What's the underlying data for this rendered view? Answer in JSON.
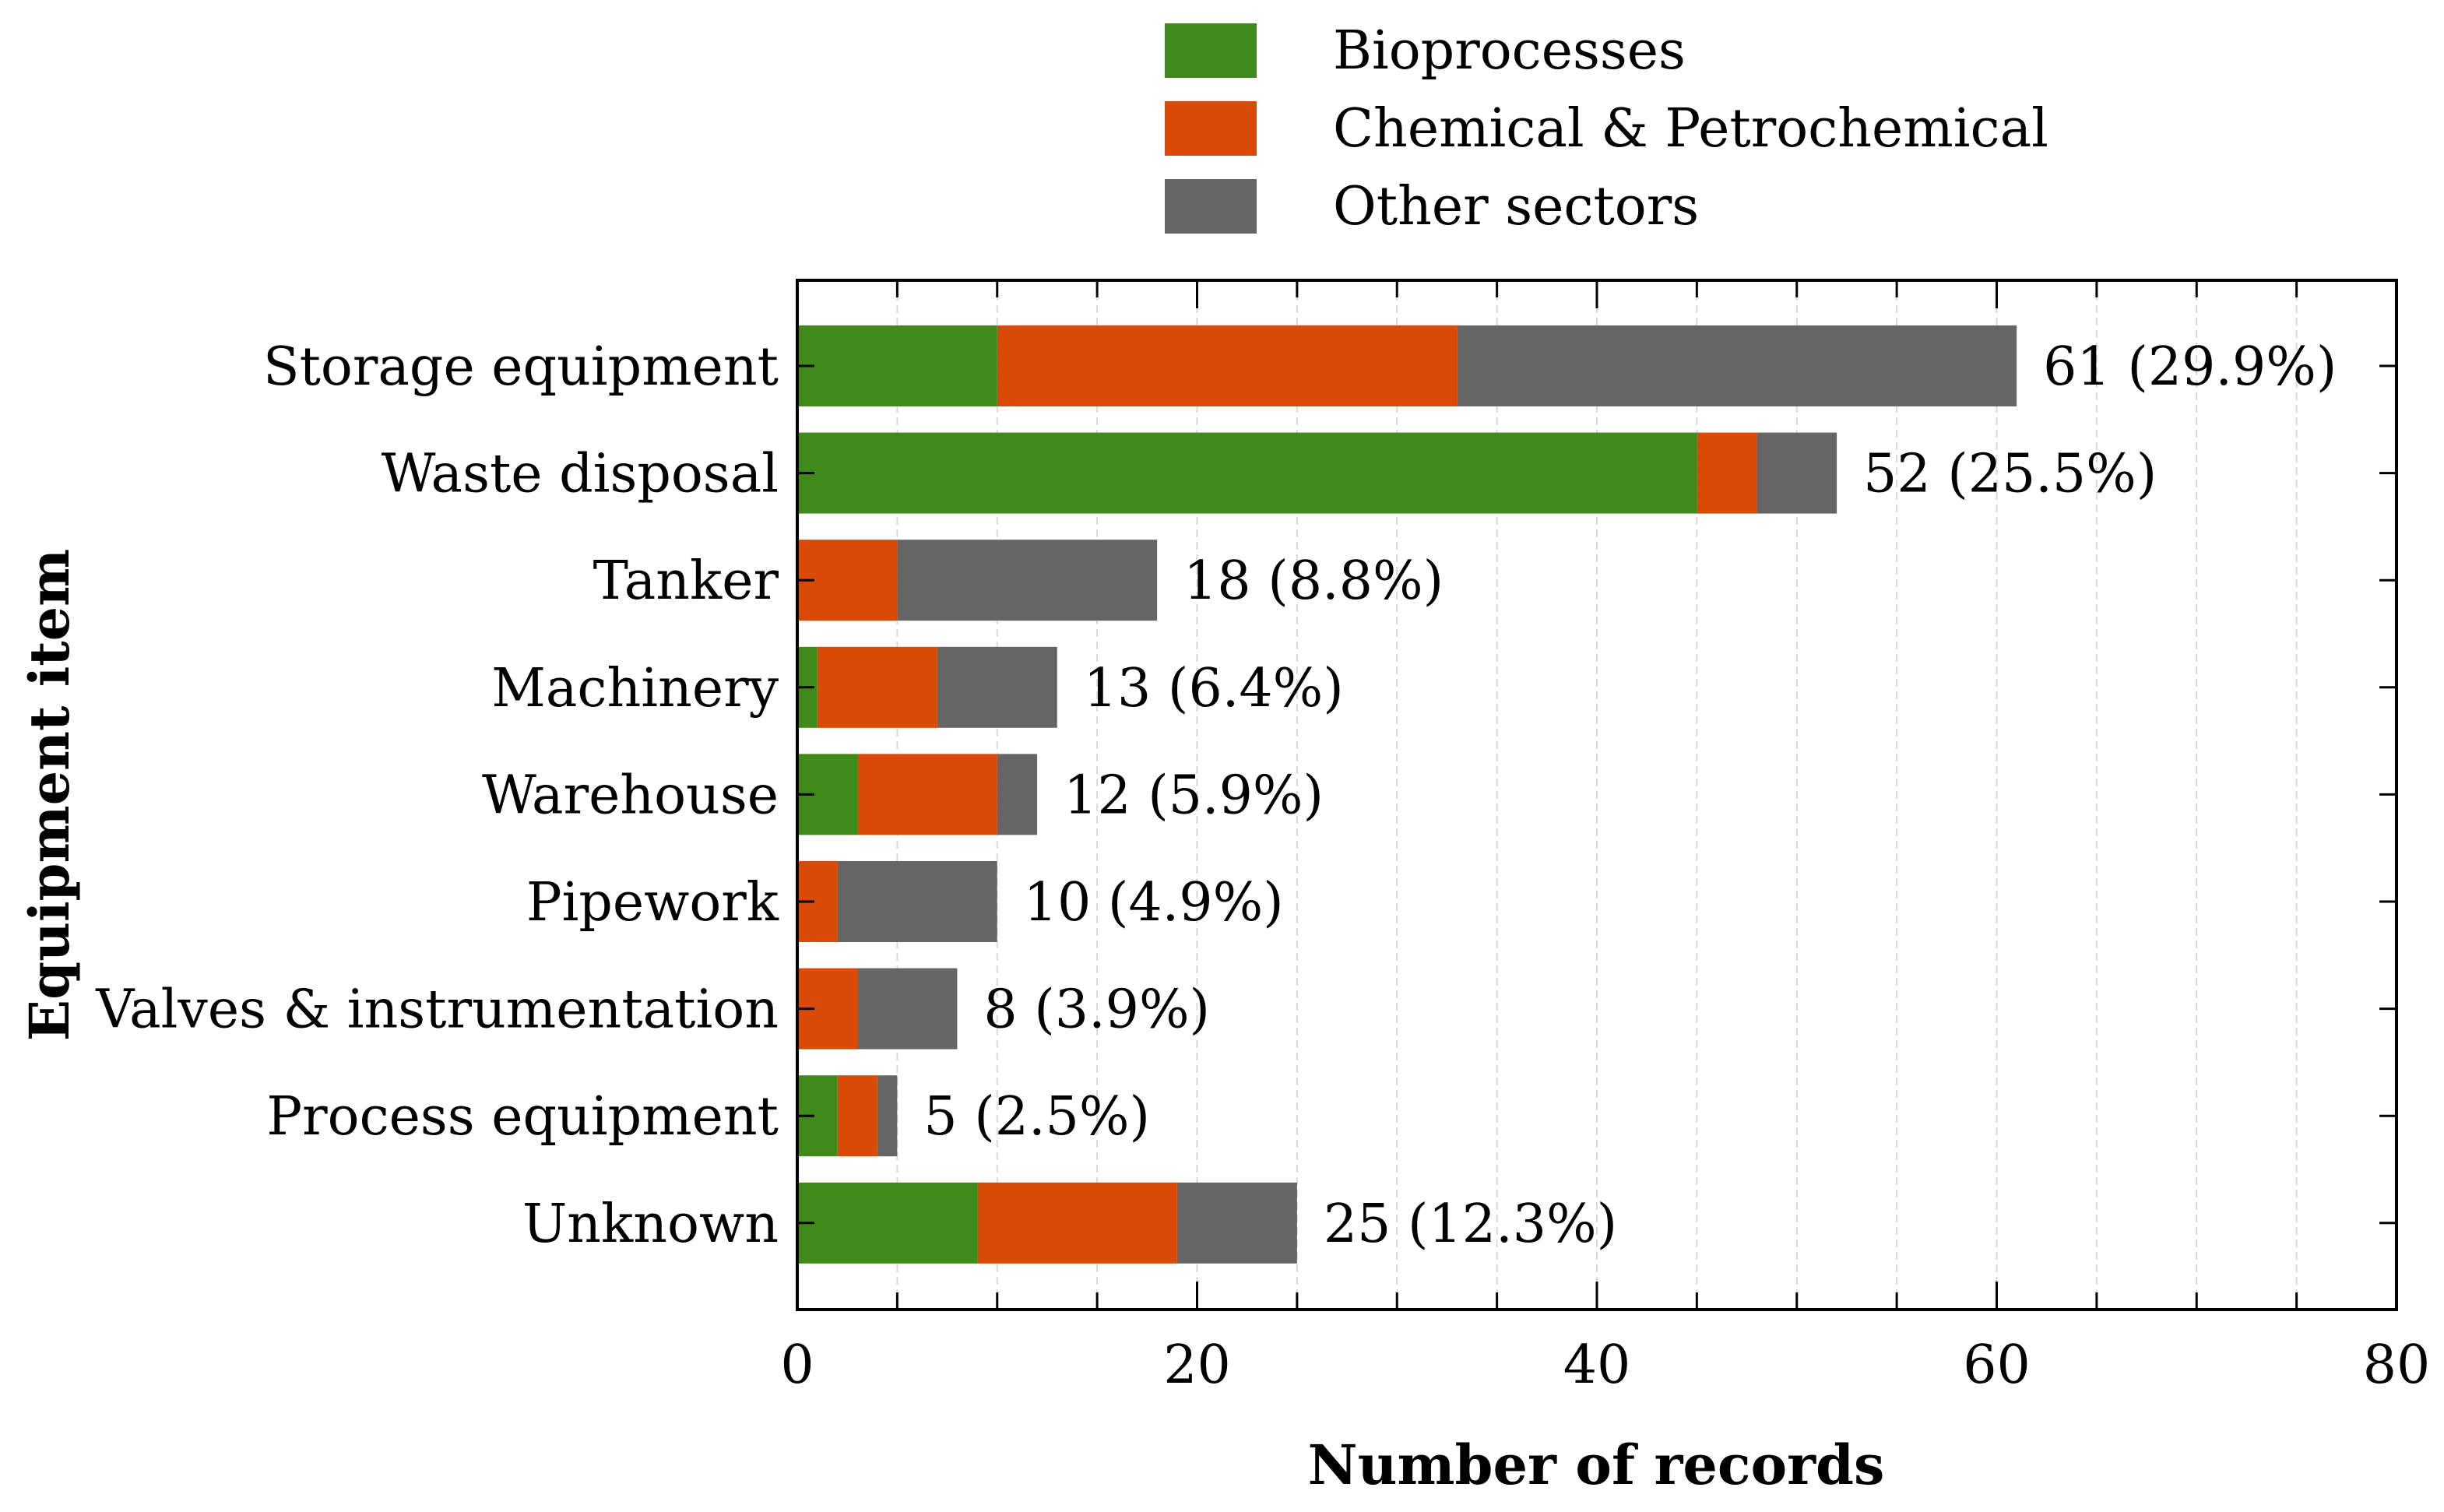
{
  "colors": {
    "bioprocesses": "#3f8a1a",
    "chemical": "#d94a06",
    "other": "#656565",
    "grid": "#d9d9d9"
  },
  "chart_data": {
    "type": "bar",
    "orientation": "horizontal",
    "stacked": true,
    "categories": [
      "Storage equipment",
      "Waste disposal",
      "Tanker",
      "Machinery",
      "Warehouse",
      "Pipework",
      "Valves & instrumentation",
      "Process equipment",
      "Unknown"
    ],
    "series": [
      {
        "name": "Bioprocesses",
        "values": [
          10,
          45,
          0,
          1,
          3,
          0,
          0,
          2,
          9
        ]
      },
      {
        "name": "Chemical & Petrochemical",
        "values": [
          23,
          3,
          5,
          6,
          7,
          2,
          3,
          2,
          10
        ]
      },
      {
        "name": "Other sectors",
        "values": [
          28,
          4,
          13,
          6,
          2,
          8,
          5,
          1,
          6
        ]
      }
    ],
    "totals_labels": [
      "61 (29.9%)",
      "52 (25.5%)",
      "18 (8.8%)",
      "13 (6.4%)",
      "12 (5.9%)",
      "10 (4.9%)",
      "8 (3.9%)",
      "5 (2.5%)",
      "25 (12.3%)"
    ],
    "xlabel": "Number of records",
    "ylabel": "Equipment item",
    "xlim": [
      0,
      80
    ],
    "xticks": [
      0,
      20,
      40,
      60,
      80
    ],
    "minor_ticks_every": 5,
    "grid": "vertical dashed",
    "legend_position": "top"
  }
}
